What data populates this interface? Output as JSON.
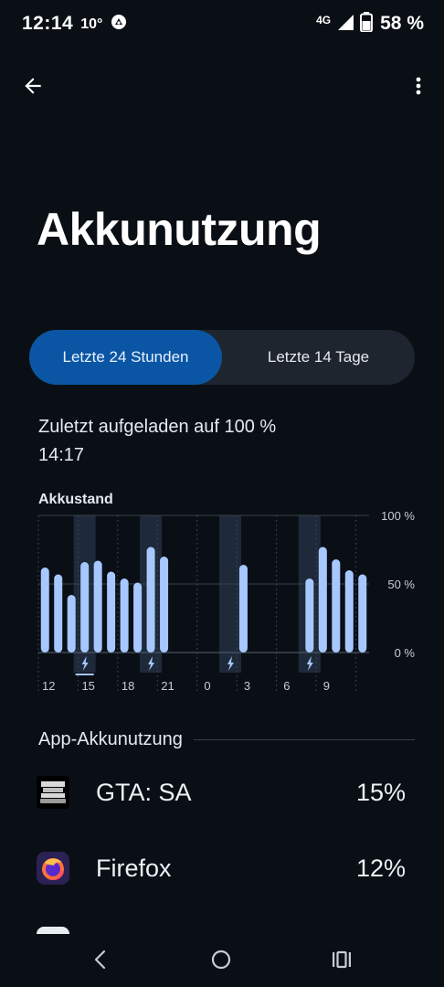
{
  "status_bar": {
    "time": "12:14",
    "temperature": "10°",
    "network": "4G",
    "battery": "58 %"
  },
  "icons": {
    "back": "arrow-left-icon",
    "more": "more-vert-icon",
    "weather": "weather-icon",
    "signal": "signal-icon",
    "battery": "battery-icon"
  },
  "page": {
    "title": "Akkunutzung"
  },
  "tabs": [
    {
      "label": "Letzte 24 Stunden",
      "selected": true
    },
    {
      "label": "Letzte 14 Tage",
      "selected": false
    }
  ],
  "charged": {
    "line1": "Zuletzt aufgeladen auf 100 %",
    "line2": "14:17"
  },
  "chart_data": {
    "type": "bar",
    "title": "Akkustand",
    "y_ticks": [
      "100 %",
      "50 %",
      "0 %"
    ],
    "ylim": [
      0,
      100
    ],
    "x_tick_labels": [
      "12",
      "15",
      "18",
      "21",
      "0",
      "3",
      "6",
      "9"
    ],
    "values": [
      62,
      57,
      42,
      66,
      67,
      59,
      54,
      51,
      77,
      70,
      0,
      0,
      0,
      0,
      0,
      64,
      0,
      0,
      0,
      0,
      54,
      77,
      68,
      60,
      57
    ],
    "charging_hours": [
      3,
      8,
      14,
      20
    ],
    "colors": {
      "bar": "#a6c8ff",
      "charging_band": "#1e2a3a",
      "grid": "#3a4048"
    }
  },
  "app_usage": {
    "header": "App-Akkunutzung",
    "apps": [
      {
        "name": "GTA: SA",
        "percent": "15%",
        "icon": "gta-sa-icon"
      },
      {
        "name": "Firefox",
        "percent": "12%",
        "icon": "firefox-icon"
      }
    ]
  },
  "nav": {
    "back": "nav-back-icon",
    "home": "nav-home-icon",
    "recents": "nav-recents-icon"
  },
  "colors": {
    "background": "#0a0f16",
    "accent": "#0b56a4",
    "segment_bg": "#1f252e"
  }
}
